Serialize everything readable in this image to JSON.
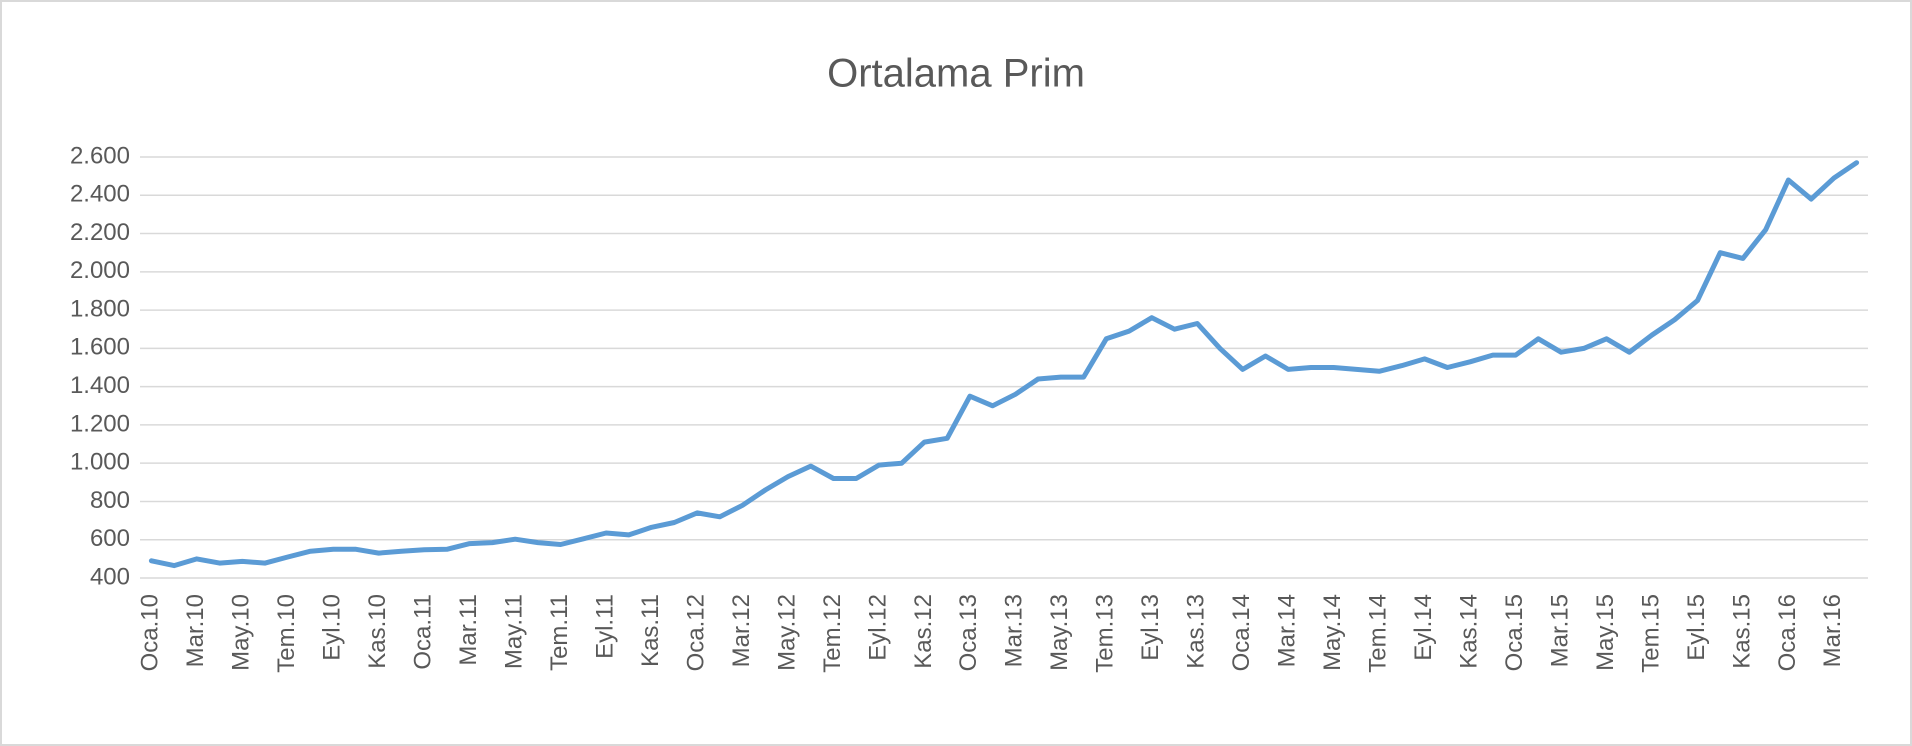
{
  "chart_data": {
    "type": "line",
    "title": "Ortalama Prim",
    "categories": [
      "Oca.10",
      null,
      "Mar.10",
      null,
      "May.10",
      null,
      "Tem.10",
      null,
      "Eyl.10",
      null,
      "Kas.10",
      null,
      "Oca.11",
      null,
      "Mar.11",
      null,
      "May.11",
      null,
      "Tem.11",
      null,
      "Eyl.11",
      null,
      "Kas.11",
      null,
      "Oca.12",
      null,
      "Mar.12",
      null,
      "May.12",
      null,
      "Tem.12",
      null,
      "Eyl.12",
      null,
      "Kas.12",
      null,
      "Oca.13",
      null,
      "Mar.13",
      null,
      "May.13",
      null,
      "Tem.13",
      null,
      "Eyl.13",
      null,
      "Kas.13",
      null,
      "Oca.14",
      null,
      "Mar.14",
      null,
      "May.14",
      null,
      "Tem.14",
      null,
      "Eyl.14",
      null,
      "Kas.14",
      null,
      "Oca.15",
      null,
      "Mar.15",
      null,
      "May.15",
      null,
      "Tem.15",
      null,
      "Eyl.15",
      null,
      "Kas.15",
      null,
      "Oca.16",
      null,
      "Mar.16",
      null
    ],
    "series": [
      {
        "name": "Ortalama Prim",
        "color": "#5b9bd5",
        "values": [
          490,
          465,
          500,
          478,
          487,
          478,
          510,
          540,
          550,
          550,
          530,
          540,
          548,
          550,
          580,
          585,
          603,
          585,
          575,
          605,
          635,
          625,
          665,
          690,
          740,
          720,
          780,
          860,
          930,
          985,
          920,
          920,
          990,
          1000,
          1110,
          1130,
          1350,
          1300,
          1360,
          1440,
          1450,
          1450,
          1650,
          1690,
          1760,
          1700,
          1730,
          1600,
          1490,
          1560,
          1490,
          1500,
          1500,
          1490,
          1480,
          1510,
          1545,
          1500,
          1530,
          1565,
          1565,
          1650,
          1580,
          1600,
          1650,
          1580,
          1670,
          1750,
          1850,
          2100,
          2070,
          2220,
          2480,
          2380,
          2490,
          2570
        ]
      }
    ],
    "ylim": [
      400,
      2600
    ],
    "yticks": [
      400,
      600,
      800,
      {
        "value": 1000,
        "label": "1.000"
      },
      {
        "value": 1200,
        "label": "1.200"
      },
      {
        "value": 1400,
        "label": "1.400"
      },
      {
        "value": 1600,
        "label": "1.600"
      },
      {
        "value": 1800,
        "label": "1.800"
      },
      {
        "value": 2000,
        "label": "2.000"
      },
      {
        "value": 2200,
        "label": "2.200"
      },
      {
        "value": 2400,
        "label": "2.400"
      },
      {
        "value": 2600,
        "label": "2.600"
      }
    ],
    "grid": true
  }
}
